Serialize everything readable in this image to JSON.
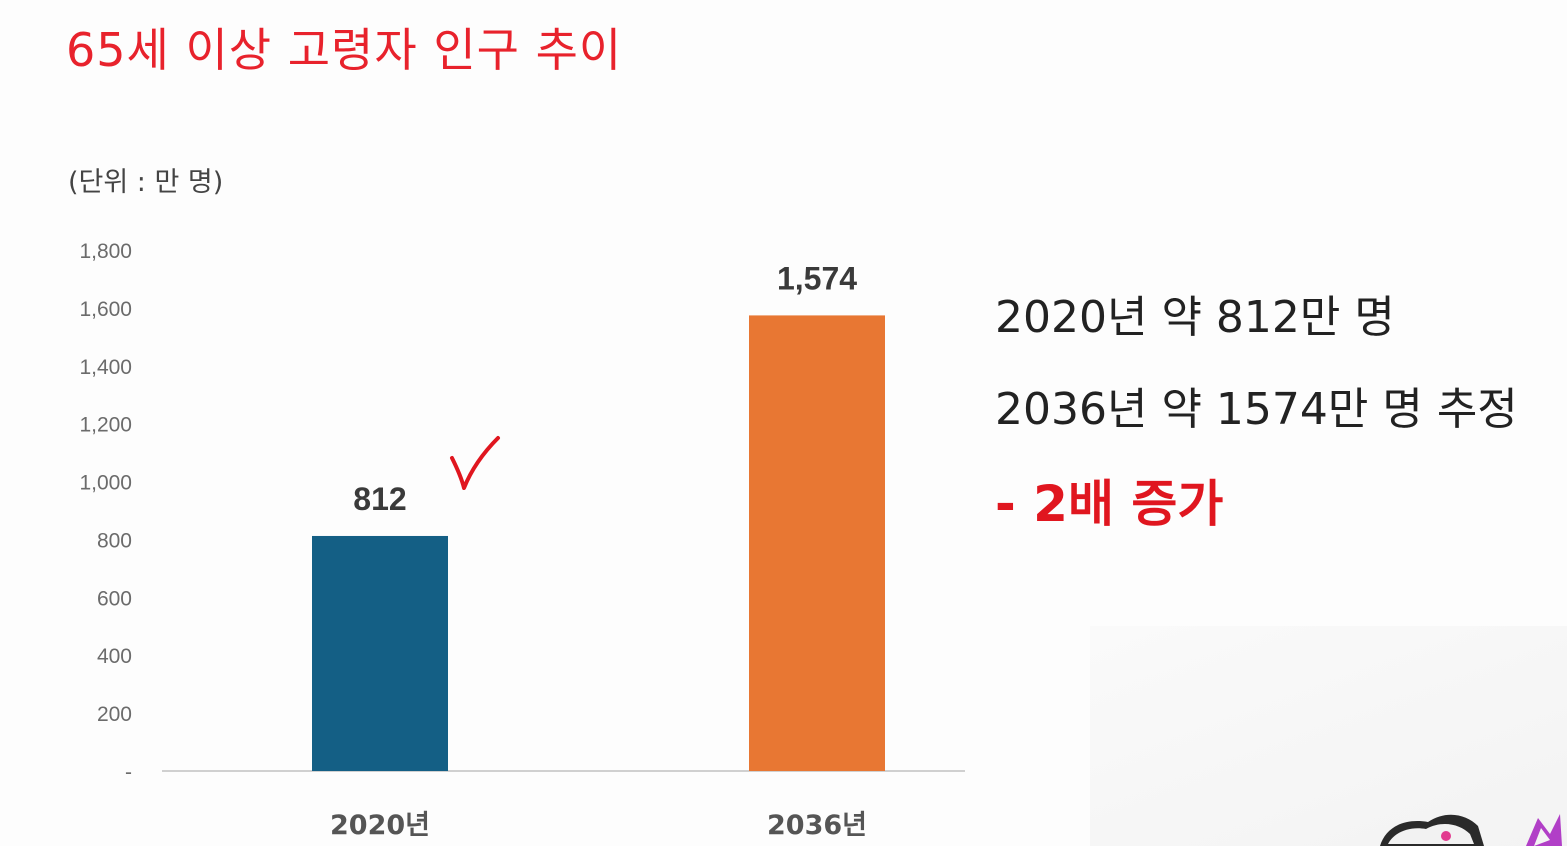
{
  "slide": {
    "title": "65세 이상 고령자 인구 추이",
    "unit_label": "(단위 : 만 명)"
  },
  "chart_data": {
    "type": "bar",
    "title": "65세 이상 고령자 인구 추이",
    "ylabel": "(단위 : 만 명)",
    "xlabel": "",
    "categories": [
      "2020년",
      "2036년"
    ],
    "values": [
      812,
      1574
    ],
    "value_labels": [
      "812",
      "1,574"
    ],
    "colors": [
      "#145f85",
      "#e87733"
    ],
    "ylim": [
      0,
      1800
    ],
    "yticks": [
      0,
      200,
      400,
      600,
      800,
      1000,
      1200,
      1400,
      1600,
      1800
    ],
    "ytick_labels": [
      "-",
      "200",
      "400",
      "600",
      "800",
      "1,000",
      "1,200",
      "1,400",
      "1,600",
      "1,800"
    ],
    "grid": false,
    "legend": "none",
    "annotation_mark": "handwritten-checkmark",
    "annotation_color": "#e0161f"
  },
  "notes": {
    "line1": "2020년 약 812만 명",
    "line2": "2036년 약 1574만 명 추정",
    "emphasis": "- 2배 증가",
    "emphasis_color": "#e0161f"
  }
}
